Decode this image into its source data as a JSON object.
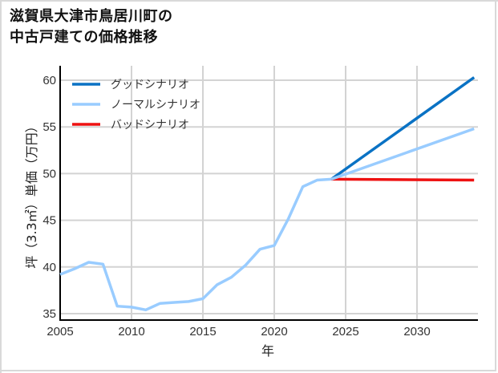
{
  "title_line1": "滋賀県大津市鳥居川町の",
  "title_line2": "中古戸建ての価格推移",
  "colors": {
    "good": "#0a72c4",
    "normal": "#99ccff",
    "bad": "#ee1111",
    "grid": "#d3d3d3",
    "axis": "#000000"
  },
  "chart_data": {
    "type": "line",
    "title": "滋賀県大津市鳥居川町の中古戸建ての価格推移",
    "xlabel": "年",
    "ylabel": "坪（3.3㎡）単価（万円）",
    "xlim": [
      2005,
      2034
    ],
    "ylim": [
      34.3,
      61.6
    ],
    "xticks": [
      2005,
      2010,
      2015,
      2020,
      2025,
      2030
    ],
    "yticks": [
      35,
      40,
      45,
      50,
      55,
      60
    ],
    "grid": true,
    "legend_position": "upper left",
    "historical": {
      "x": [
        2005,
        2006,
        2007,
        2008,
        2009,
        2010,
        2011,
        2012,
        2013,
        2014,
        2015,
        2016,
        2017,
        2018,
        2019,
        2020,
        2021,
        2022,
        2023,
        2024
      ],
      "y": [
        39.2,
        39.8,
        40.5,
        40.3,
        35.8,
        35.7,
        35.4,
        36.1,
        36.2,
        36.3,
        36.6,
        38.1,
        38.9,
        40.2,
        41.9,
        42.3,
        45.2,
        48.6,
        49.3,
        49.4
      ]
    },
    "series": [
      {
        "name": "グッドシナリオ",
        "x": [
          2024,
          2034
        ],
        "values": [
          49.4,
          60.3
        ]
      },
      {
        "name": "ノーマルシナリオ",
        "x": [
          2024,
          2034
        ],
        "values": [
          49.4,
          54.8
        ]
      },
      {
        "name": "バッドシナリオ",
        "x": [
          2024,
          2034
        ],
        "values": [
          49.4,
          49.3
        ]
      }
    ]
  },
  "legend": [
    {
      "label": "グッドシナリオ"
    },
    {
      "label": "ノーマルシナリオ"
    },
    {
      "label": "バッドシナリオ"
    }
  ]
}
